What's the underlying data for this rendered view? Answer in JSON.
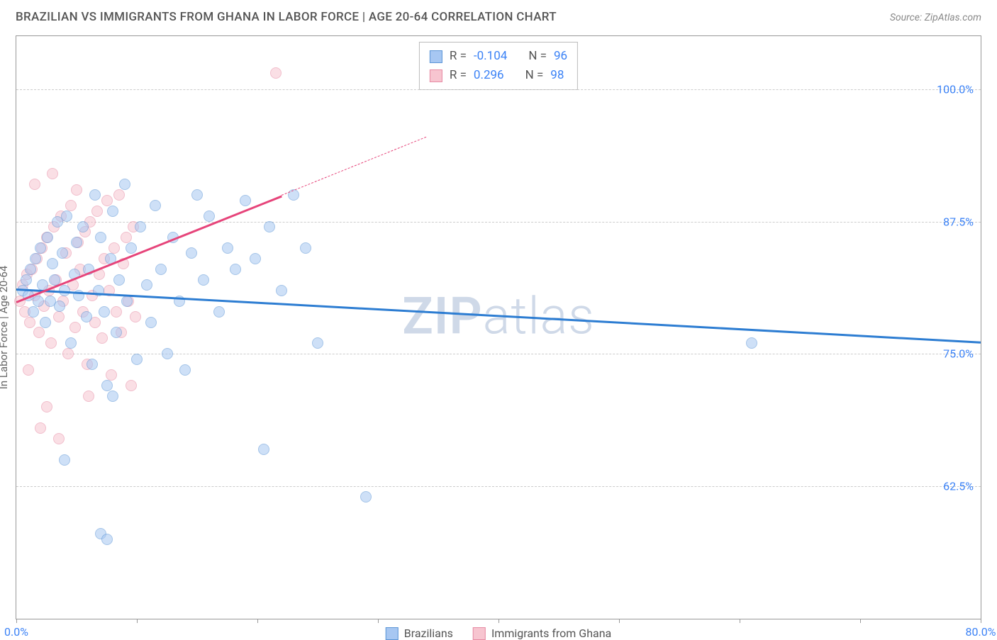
{
  "header": {
    "title": "BRAZILIAN VS IMMIGRANTS FROM GHANA IN LABOR FORCE | AGE 20-64 CORRELATION CHART",
    "source_prefix": "Source: ",
    "source_name": "ZipAtlas.com"
  },
  "chart": {
    "type": "scatter",
    "background_color": "#ffffff",
    "border_color": "#999999",
    "grid_color": "#cccccc",
    "grid_dash": true,
    "ylabel": "In Labor Force | Age 20-64",
    "ylabel_fontsize": 15,
    "ylabel_color": "#666666",
    "tick_label_color": "#3b82f6",
    "tick_label_fontsize": 16,
    "xlim": [
      0,
      80
    ],
    "ylim": [
      50,
      105
    ],
    "xticks": [
      0,
      10,
      20,
      30,
      40,
      50,
      60,
      70,
      80
    ],
    "xtick_labels": {
      "0": "0.0%",
      "80": "80.0%"
    },
    "yticks": [
      62.5,
      75.0,
      87.5,
      100.0
    ],
    "ytick_labels": [
      "62.5%",
      "75.0%",
      "87.5%",
      "100.0%"
    ],
    "marker_radius": 8,
    "marker_opacity": 0.55,
    "watermark": "ZIPatlas"
  },
  "series": {
    "brazilians": {
      "label": "Brazilians",
      "fill_color": "#a7c7f2",
      "stroke_color": "#5b95d6",
      "trend_color": "#2d7dd2",
      "R": "-0.104",
      "N": "96",
      "trend_line": {
        "x1": 0,
        "y1": 81.2,
        "x2": 80,
        "y2": 76.2
      },
      "points": [
        [
          0.5,
          81
        ],
        [
          0.8,
          82
        ],
        [
          1.0,
          80.5
        ],
        [
          1.2,
          83
        ],
        [
          1.4,
          79
        ],
        [
          1.6,
          84
        ],
        [
          1.8,
          80
        ],
        [
          2.0,
          85
        ],
        [
          2.2,
          81.5
        ],
        [
          2.4,
          78
        ],
        [
          2.6,
          86
        ],
        [
          2.8,
          80
        ],
        [
          3.0,
          83.5
        ],
        [
          3.2,
          82
        ],
        [
          3.4,
          87.5
        ],
        [
          3.6,
          79.5
        ],
        [
          3.8,
          84.5
        ],
        [
          4.0,
          81
        ],
        [
          4.2,
          88
        ],
        [
          4.5,
          76
        ],
        [
          4.8,
          82.5
        ],
        [
          5.0,
          85.5
        ],
        [
          5.2,
          80.5
        ],
        [
          5.5,
          87
        ],
        [
          5.8,
          78.5
        ],
        [
          6.0,
          83
        ],
        [
          6.3,
          74
        ],
        [
          6.5,
          90
        ],
        [
          6.8,
          81
        ],
        [
          7.0,
          86
        ],
        [
          7.3,
          79
        ],
        [
          7.5,
          72
        ],
        [
          7.8,
          84
        ],
        [
          8.0,
          88.5
        ],
        [
          8.3,
          77
        ],
        [
          8.5,
          82
        ],
        [
          9.0,
          91
        ],
        [
          9.2,
          80
        ],
        [
          9.5,
          85
        ],
        [
          10.0,
          74.5
        ],
        [
          10.3,
          87
        ],
        [
          10.8,
          81.5
        ],
        [
          11.2,
          78
        ],
        [
          11.5,
          89
        ],
        [
          12.0,
          83
        ],
        [
          12.5,
          75
        ],
        [
          13.0,
          86
        ],
        [
          13.5,
          80
        ],
        [
          14.0,
          73.5
        ],
        [
          14.5,
          84.5
        ],
        [
          15.0,
          90
        ],
        [
          15.5,
          82
        ],
        [
          16.0,
          88
        ],
        [
          16.8,
          79
        ],
        [
          17.5,
          85
        ],
        [
          18.2,
          83
        ],
        [
          19.0,
          89.5
        ],
        [
          19.8,
          84
        ],
        [
          20.5,
          66
        ],
        [
          21.0,
          87
        ],
        [
          22.0,
          81
        ],
        [
          23.0,
          90
        ],
        [
          24.0,
          85
        ],
        [
          25.0,
          76
        ],
        [
          4.0,
          65
        ],
        [
          7.0,
          58
        ],
        [
          7.5,
          57.5
        ],
        [
          8.0,
          71
        ],
        [
          29.0,
          61.5
        ],
        [
          61.0,
          76
        ]
      ]
    },
    "ghana": {
      "label": "Immigrants from Ghana",
      "fill_color": "#f7c5d0",
      "stroke_color": "#e68aa3",
      "trend_color": "#e6447a",
      "R": "0.296",
      "N": "98",
      "trend_line_solid": {
        "x1": 0,
        "y1": 80.0,
        "x2": 22,
        "y2": 90.0
      },
      "trend_line_dash": {
        "x1": 22,
        "y1": 90.0,
        "x2": 34,
        "y2": 95.5
      },
      "points": [
        [
          0.3,
          80
        ],
        [
          0.5,
          81.5
        ],
        [
          0.7,
          79
        ],
        [
          0.9,
          82.5
        ],
        [
          1.1,
          78
        ],
        [
          1.3,
          83
        ],
        [
          1.5,
          80.5
        ],
        [
          1.7,
          84
        ],
        [
          1.9,
          77
        ],
        [
          2.1,
          85
        ],
        [
          2.3,
          79.5
        ],
        [
          2.5,
          86
        ],
        [
          2.7,
          81
        ],
        [
          2.9,
          76
        ],
        [
          3.1,
          87
        ],
        [
          3.3,
          82
        ],
        [
          3.5,
          78.5
        ],
        [
          3.7,
          88
        ],
        [
          3.9,
          80
        ],
        [
          4.1,
          84.5
        ],
        [
          4.3,
          75
        ],
        [
          4.5,
          89
        ],
        [
          4.7,
          81.5
        ],
        [
          4.9,
          77.5
        ],
        [
          5.1,
          85.5
        ],
        [
          5.3,
          83
        ],
        [
          5.5,
          79
        ],
        [
          5.7,
          86.5
        ],
        [
          5.9,
          74
        ],
        [
          6.1,
          87.5
        ],
        [
          6.3,
          80.5
        ],
        [
          6.5,
          78
        ],
        [
          6.7,
          88.5
        ],
        [
          6.9,
          82.5
        ],
        [
          7.1,
          76.5
        ],
        [
          7.3,
          84
        ],
        [
          7.5,
          89.5
        ],
        [
          7.7,
          81
        ],
        [
          7.9,
          73
        ],
        [
          8.1,
          85
        ],
        [
          8.3,
          79
        ],
        [
          8.5,
          90
        ],
        [
          8.7,
          77
        ],
        [
          8.9,
          83.5
        ],
        [
          9.1,
          86
        ],
        [
          9.3,
          80
        ],
        [
          9.5,
          72
        ],
        [
          9.7,
          87
        ],
        [
          9.9,
          78.5
        ],
        [
          1.5,
          91
        ],
        [
          2.0,
          68
        ],
        [
          2.5,
          70
        ],
        [
          3.0,
          92
        ],
        [
          21.5,
          101.5
        ],
        [
          5.0,
          90.5
        ],
        [
          6.0,
          71
        ],
        [
          1.0,
          73.5
        ],
        [
          3.5,
          67
        ]
      ]
    }
  },
  "stats_box": {
    "rows": [
      {
        "swatch_fill": "#a7c7f2",
        "swatch_stroke": "#5b95d6",
        "R_label": "R = ",
        "R": "-0.104",
        "N_label": "N = ",
        "N": "96"
      },
      {
        "swatch_fill": "#f7c5d0",
        "swatch_stroke": "#e68aa3",
        "R_label": "R = ",
        "R": " 0.296",
        "N_label": "N = ",
        "N": "98"
      }
    ]
  },
  "legend": {
    "items": [
      {
        "swatch_fill": "#a7c7f2",
        "swatch_stroke": "#5b95d6",
        "label": "Brazilians"
      },
      {
        "swatch_fill": "#f7c5d0",
        "swatch_stroke": "#e68aa3",
        "label": "Immigrants from Ghana"
      }
    ]
  }
}
